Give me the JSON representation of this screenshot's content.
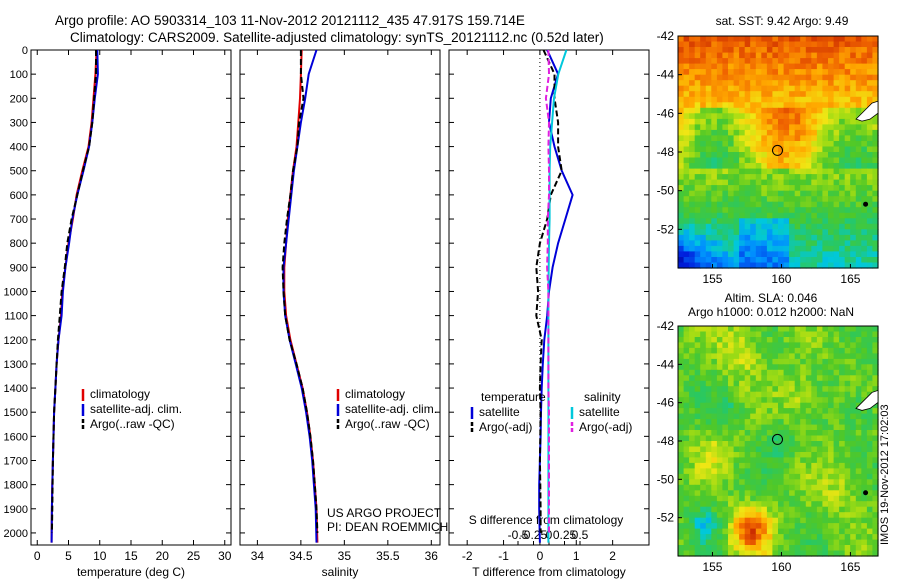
{
  "header": {
    "line1": "Argo profile: AO 5903314_103 11-Nov-2012 20121112_435 47.917S 159.714E",
    "line2": "Climatology: CARS2009. Satellite-adjusted climatology: synTS_20121112.nc (0.52d later)"
  },
  "credits": {
    "project": "US ARGO PROJECT",
    "pi": "PI: DEAN ROEMMICH"
  },
  "watermark": "IMOS 19-Nov-2012 17:02:03",
  "map_titles": {
    "sst": "sat. SST: 9.42  Argo: 9.49",
    "sla_line1": "Altim. SLA: 0.046",
    "sla_line2": "Argo h1000: 0.012  h2000: NaN"
  },
  "colors": {
    "climatology": "#e00000",
    "satellite": "#0000d8",
    "argo": "#000000",
    "salinity_sat": "#00c8dc",
    "salinity_argo": "#e020e0"
  },
  "chart_data": [
    {
      "type": "line",
      "xlabel": "temperature (deg C)",
      "xlim": [
        -1,
        31
      ],
      "ylim": [
        2050,
        0
      ],
      "x_ticks": [
        0,
        5,
        10,
        15,
        20,
        25,
        30
      ],
      "y_ticks": [
        0,
        100,
        200,
        300,
        400,
        500,
        600,
        700,
        800,
        900,
        1000,
        1100,
        1200,
        1300,
        1400,
        1500,
        1600,
        1700,
        1800,
        1900,
        2000
      ],
      "y_ticklabels": [
        "0",
        "100",
        "200",
        "300",
        "400",
        "500",
        "600",
        "700",
        "800",
        "900",
        "1000",
        "1100",
        "1200",
        "1300",
        "1400",
        "1500",
        "1600",
        "1700",
        "1800",
        "1900",
        "2000"
      ],
      "legend": [
        "climatology",
        "satellite-adj. clim.",
        "Argo(..raw -QC)"
      ],
      "series": [
        {
          "name": "climatology",
          "x": [
            9.5,
            9.3,
            9.0,
            8.7,
            8.2,
            7.2,
            6.3,
            5.7,
            5.0,
            4.5,
            4.0,
            3.8,
            3.4,
            3.1,
            2.9,
            2.7,
            2.6,
            2.5,
            2.4,
            2.35,
            2.3
          ],
          "y": [
            0,
            100,
            200,
            300,
            400,
            500,
            600,
            700,
            800,
            900,
            1000,
            1100,
            1200,
            1300,
            1400,
            1500,
            1600,
            1700,
            1800,
            1900,
            2040
          ]
        },
        {
          "name": "satellite-adj. clim.",
          "x": [
            9.6,
            9.7,
            9.2,
            8.8,
            8.3,
            7.4,
            6.4,
            5.6,
            5.1,
            4.5,
            4.1,
            3.9,
            3.4,
            3.1,
            2.9,
            2.7,
            2.6,
            2.5,
            2.4,
            2.35,
            2.3
          ],
          "y": [
            0,
            100,
            200,
            300,
            400,
            500,
            600,
            700,
            800,
            900,
            1000,
            1100,
            1200,
            1300,
            1400,
            1500,
            1600,
            1700,
            1800,
            1900,
            2040
          ]
        },
        {
          "name": "Argo(..raw -QC)",
          "x": [
            9.4,
            9.4,
            9.1,
            8.8,
            8.3,
            7.3,
            6.4,
            5.5,
            4.8,
            4.4,
            3.9,
            3.6,
            3.3,
            3.1,
            2.9,
            2.7,
            2.6,
            2.5,
            2.45,
            2.4,
            2.35
          ],
          "y": [
            0,
            100,
            200,
            300,
            400,
            500,
            600,
            700,
            800,
            900,
            1000,
            1100,
            1200,
            1300,
            1400,
            1500,
            1600,
            1700,
            1800,
            1900,
            2000
          ]
        }
      ]
    },
    {
      "type": "line",
      "xlabel": "salinity",
      "xlim": [
        33.8,
        36.1
      ],
      "ylim": [
        2050,
        0
      ],
      "x_ticks": [
        34,
        34.5,
        35,
        35.5,
        36
      ],
      "x_ticklabels": [
        "34",
        "34.5",
        "35",
        "35.5",
        "36"
      ],
      "legend": [
        "climatology",
        "satellite-adj. clim.",
        "Argo(..raw -QC)"
      ],
      "series": [
        {
          "name": "climatology",
          "x": [
            34.51,
            34.5,
            34.49,
            34.47,
            34.45,
            34.41,
            34.38,
            34.35,
            34.33,
            34.31,
            34.31,
            34.33,
            34.38,
            34.45,
            34.52,
            34.57,
            34.61,
            34.64,
            34.66,
            34.68,
            34.69
          ],
          "y": [
            0,
            100,
            200,
            300,
            400,
            500,
            600,
            700,
            800,
            900,
            1000,
            1100,
            1200,
            1300,
            1400,
            1500,
            1600,
            1700,
            1800,
            1900,
            2040
          ]
        },
        {
          "name": "satellite-adj. clim.",
          "x": [
            34.68,
            34.59,
            34.55,
            34.5,
            34.46,
            34.42,
            34.39,
            34.36,
            34.33,
            34.3,
            34.3,
            34.32,
            34.37,
            34.44,
            34.51,
            34.56,
            34.6,
            34.63,
            34.65,
            34.67,
            34.68
          ],
          "y": [
            0,
            100,
            200,
            300,
            400,
            500,
            600,
            700,
            800,
            900,
            1000,
            1100,
            1200,
            1300,
            1400,
            1500,
            1600,
            1700,
            1800,
            1900,
            2040
          ]
        },
        {
          "name": "Argo(..raw -QC)",
          "x": [
            34.5,
            34.5,
            34.53,
            34.48,
            34.46,
            34.41,
            34.38,
            34.34,
            34.31,
            34.29,
            34.3,
            34.32,
            34.37,
            34.45,
            34.52,
            34.57,
            34.61,
            34.64,
            34.66,
            34.68,
            34.69
          ],
          "y": [
            0,
            100,
            200,
            300,
            400,
            500,
            600,
            700,
            800,
            900,
            1000,
            1100,
            1200,
            1300,
            1400,
            1500,
            1600,
            1700,
            1800,
            1900,
            2000
          ]
        }
      ]
    },
    {
      "type": "line",
      "xlabel": "T difference from climatology",
      "xlabel_top": "S difference from climatology",
      "xlim": [
        -2.5,
        3
      ],
      "ylim": [
        2050,
        0
      ],
      "x_ticks": [
        -2,
        -1,
        0,
        1,
        2
      ],
      "top_ticks": [
        -0.5,
        -0.25,
        0,
        0.25,
        0.5
      ],
      "top_ticklabels": [
        "-0.5",
        "-0.25",
        "0",
        "0.25",
        "0.5"
      ],
      "legend_groups": [
        {
          "heading": "temperature",
          "entries": [
            "satellite",
            "Argo(-adj)"
          ]
        },
        {
          "heading": "salinity",
          "entries": [
            "satellite",
            "Argo(-adj)"
          ]
        }
      ],
      "series": [
        {
          "name": "temperature satellite",
          "x": [
            0.2,
            0.5,
            0.3,
            0.25,
            0.4,
            0.6,
            0.9,
            0.7,
            0.5,
            0.35,
            0.25,
            0.2,
            0.12,
            0.08,
            0.05,
            0.03,
            0.02,
            0.0,
            -0.02,
            -0.02,
            0.0
          ],
          "y": [
            0,
            100,
            200,
            300,
            400,
            500,
            600,
            700,
            800,
            900,
            1000,
            1100,
            1200,
            1300,
            1400,
            1500,
            1600,
            1700,
            1800,
            1900,
            2040
          ]
        },
        {
          "name": "temperature Argo(-adj)",
          "x": [
            0.1,
            0.4,
            0.4,
            0.5,
            0.5,
            0.6,
            0.3,
            0.2,
            0.0,
            -0.1,
            -0.05,
            -0.1,
            0.05,
            0.02,
            0.0,
            0.02,
            0.01,
            0.0,
            0.01,
            0.02,
            0.02
          ],
          "y": [
            0,
            100,
            200,
            300,
            400,
            500,
            600,
            700,
            800,
            900,
            1000,
            1100,
            1200,
            1300,
            1400,
            1500,
            1600,
            1700,
            1800,
            1900,
            2000
          ]
        },
        {
          "name": "salinity satellite",
          "x": [
            0.28,
            0.15,
            0.08,
            0.05,
            0.02,
            0.01,
            0.01,
            0.01,
            0.0,
            -0.005,
            -0.01,
            -0.01,
            -0.01,
            -0.01,
            -0.01,
            -0.01,
            -0.01,
            -0.01,
            -0.01,
            -0.01,
            -0.01
          ],
          "y": [
            0,
            100,
            200,
            300,
            400,
            500,
            600,
            700,
            800,
            900,
            1000,
            1100,
            1200,
            1300,
            1400,
            1500,
            1600,
            1700,
            1800,
            1900,
            2040
          ]
        },
        {
          "name": "salinity Argo(-adj)",
          "x": [
            -0.01,
            0.0,
            -0.05,
            0.0,
            -0.01,
            0.0,
            0.0,
            -0.02,
            -0.02,
            -0.03,
            -0.01,
            -0.01,
            -0.01,
            -0.01,
            -0.01,
            0.0,
            0.0,
            0.0,
            0.0,
            0.0,
            0.0
          ],
          "y": [
            0,
            100,
            200,
            300,
            400,
            500,
            600,
            700,
            800,
            900,
            1000,
            1100,
            1200,
            1300,
            1400,
            1500,
            1600,
            1700,
            1800,
            1900,
            2000
          ]
        }
      ]
    },
    {
      "type": "heatmap",
      "title": "sat. SST: 9.42  Argo: 9.49",
      "xlim": [
        152.5,
        167
      ],
      "ylim": [
        -54,
        -42
      ],
      "x_ticks": [
        155,
        160,
        165
      ],
      "y_ticks": [
        -42,
        -44,
        -46,
        -48,
        -50,
        -52
      ],
      "marker": {
        "lon": 159.714,
        "lat": -47.917
      }
    },
    {
      "type": "heatmap",
      "title": "Altim. SLA: 0.046",
      "xlim": [
        152.5,
        167
      ],
      "ylim": [
        -54,
        -42
      ],
      "x_ticks": [
        155,
        160,
        165
      ],
      "y_ticks": [
        -42,
        -44,
        -46,
        -48,
        -50,
        -52
      ],
      "marker": {
        "lon": 159.714,
        "lat": -47.917
      }
    }
  ]
}
